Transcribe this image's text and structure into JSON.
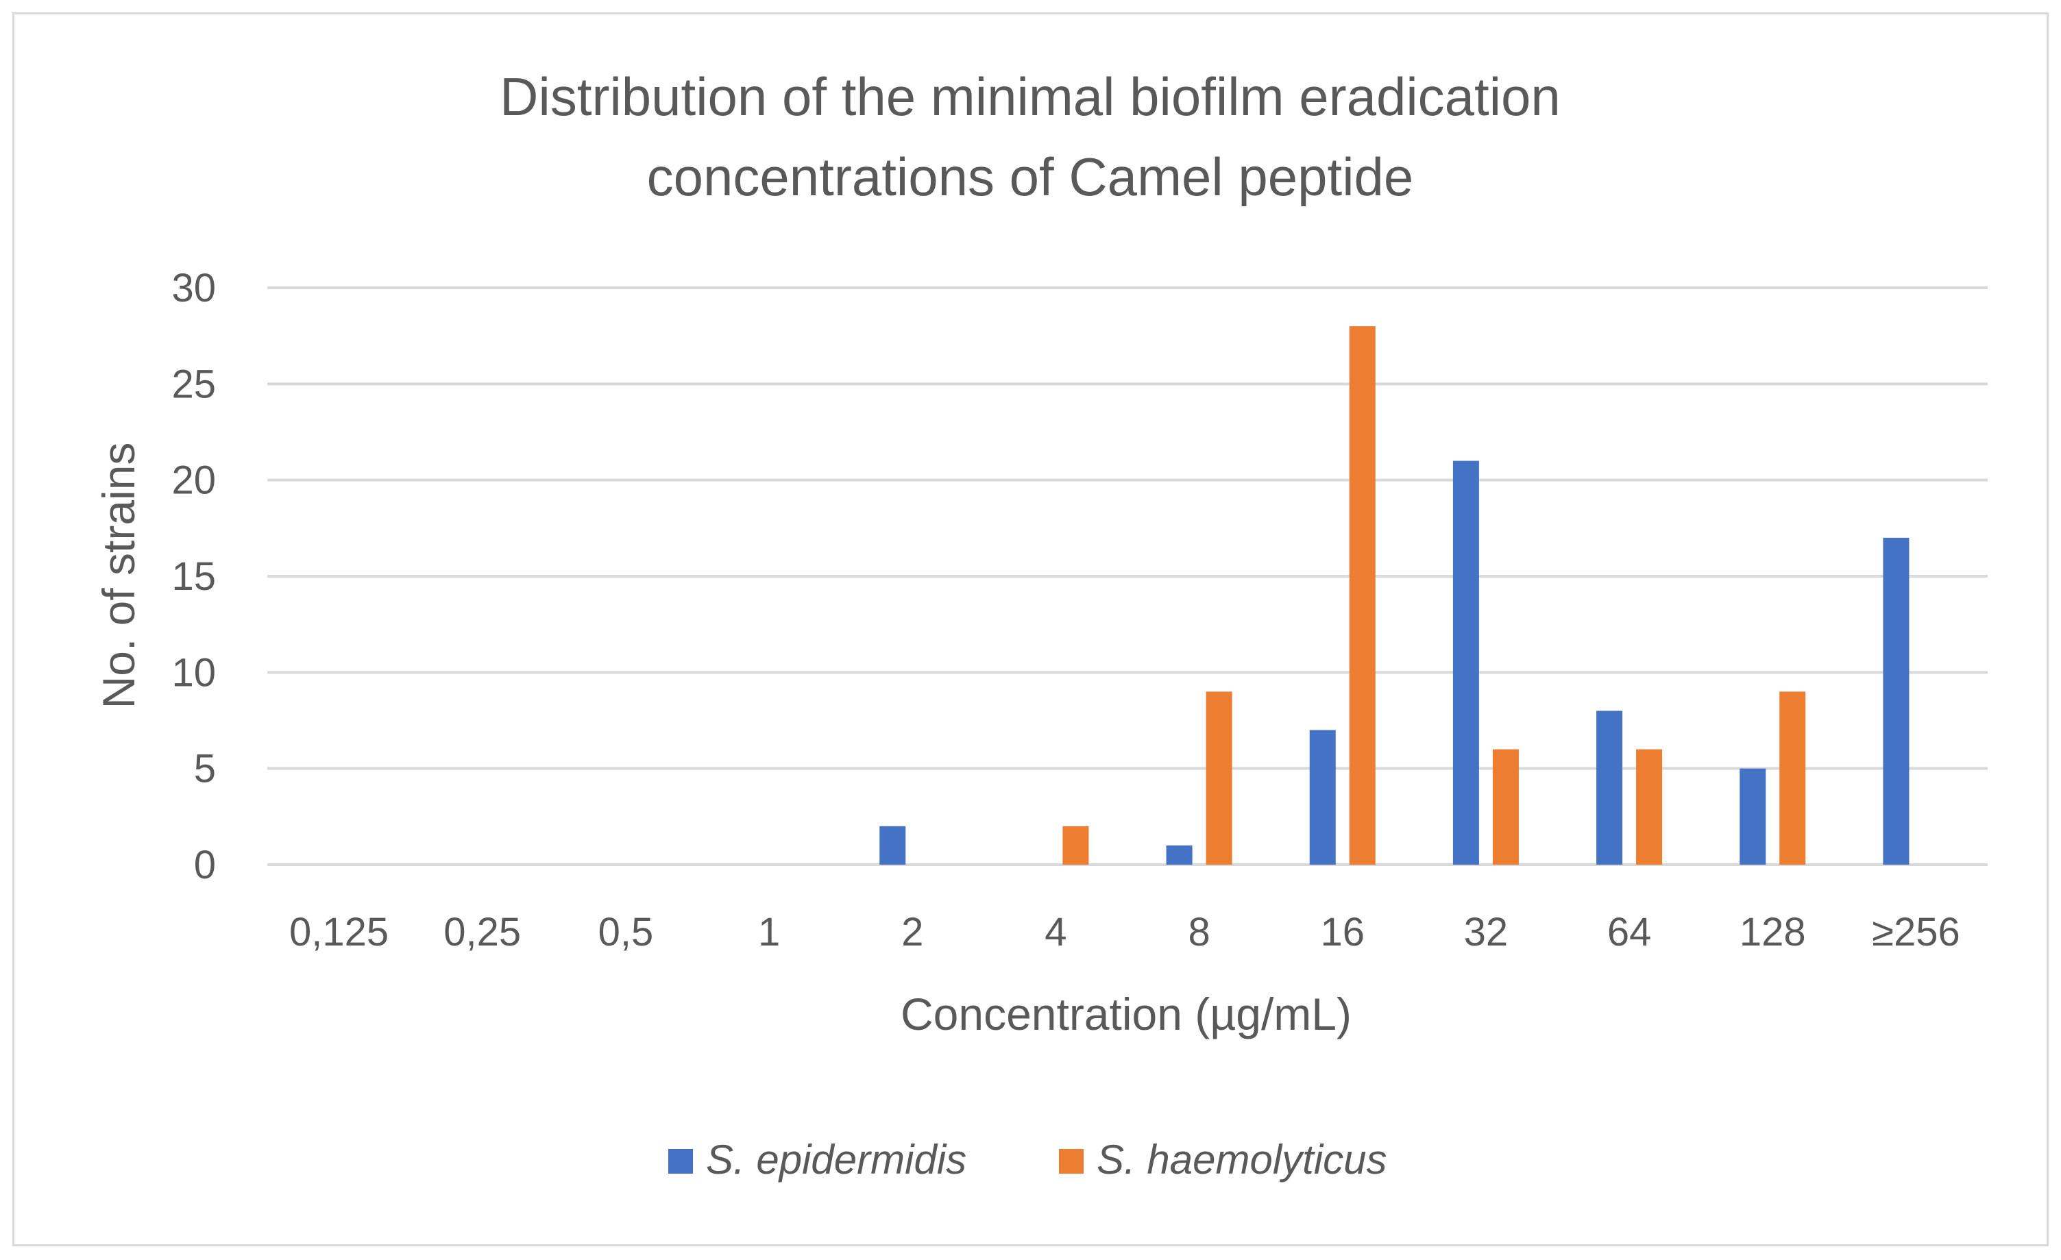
{
  "chart_data": {
    "type": "bar",
    "title_lines": [
      "Distribution of the minimal biofilm eradication",
      "concentrations of Camel peptide"
    ],
    "xlabel": "Concentration (µg/mL)",
    "ylabel": "No. of strains",
    "categories": [
      "0,125",
      "0,25",
      "0,5",
      "1",
      "2",
      "4",
      "8",
      "16",
      "32",
      "64",
      "128",
      "≥256"
    ],
    "ylim": [
      0,
      30
    ],
    "yticks": [
      0,
      5,
      10,
      15,
      20,
      25,
      30
    ],
    "grid": true,
    "legend_position": "bottom",
    "series": [
      {
        "name": "S. epidermidis",
        "color": "#4472c4",
        "values": [
          0,
          0,
          0,
          0,
          2,
          0,
          1,
          7,
          21,
          8,
          5,
          17
        ]
      },
      {
        "name": "S. haemolyticus",
        "color": "#ed7d31",
        "values": [
          0,
          0,
          0,
          0,
          0,
          2,
          9,
          28,
          6,
          6,
          9,
          0
        ]
      }
    ]
  }
}
